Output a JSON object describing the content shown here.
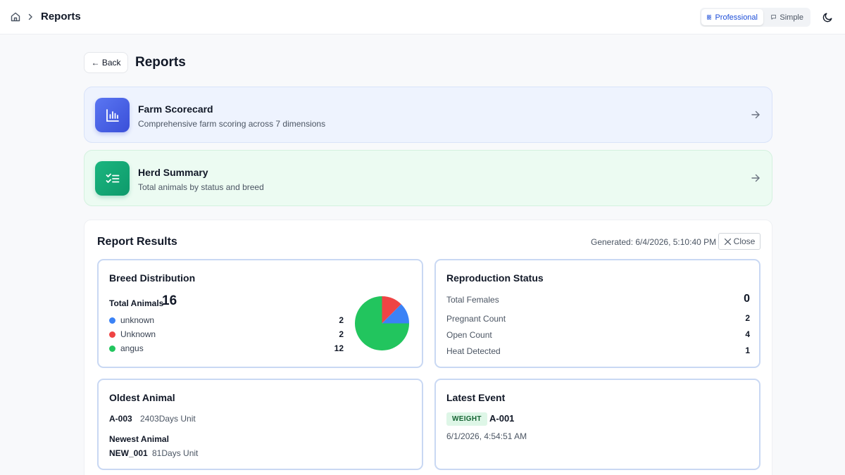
{
  "topbar": {
    "breadcrumb_title": "Reports",
    "modes": {
      "professional": "Professional",
      "simple": "Simple",
      "active": "Professional"
    }
  },
  "header": {
    "back_label": "← Back",
    "title": "Reports"
  },
  "reports": [
    {
      "title": "Farm Scorecard",
      "description": "Comprehensive farm scoring across 7 dimensions",
      "icon": "bar-chart-icon",
      "color": "#4a63e6"
    },
    {
      "title": "Herd Summary",
      "description": "Total animals by status and breed",
      "icon": "checklist-icon",
      "color": "#14a874"
    }
  ],
  "results": {
    "title": "Report Results",
    "generated": "Generated: 6/4/2026, 5:10:40 PM",
    "close_label": "Close",
    "breed_distribution": {
      "title": "Breed Distribution",
      "total_label": "Total Animals",
      "total_value": "16",
      "items": [
        {
          "name": "unknown",
          "count": "2",
          "color": "#3b82f6"
        },
        {
          "name": "Unknown",
          "count": "2",
          "color": "#ef4444"
        },
        {
          "name": "angus",
          "count": "12",
          "color": "#22c55e"
        }
      ]
    },
    "reproduction_status": {
      "title": "Reproduction Status",
      "rows": [
        {
          "label": "Total Females",
          "value": "0"
        },
        {
          "label": "Pregnant Count",
          "value": "2"
        },
        {
          "label": "Open Count",
          "value": "4"
        },
        {
          "label": "Heat Detected",
          "value": "1"
        }
      ]
    },
    "oldest_animal": {
      "title": "Oldest Animal",
      "oldest_id": "A-003",
      "oldest_age": "2403Days Unit",
      "newest_label": "Newest Animal",
      "newest_id": "NEW_001",
      "newest_age": "81Days Unit"
    },
    "latest_event": {
      "title": "Latest Event",
      "badge": "WEIGHT",
      "animal": "A-001",
      "time": "6/1/2026, 4:54:51 AM"
    }
  }
}
